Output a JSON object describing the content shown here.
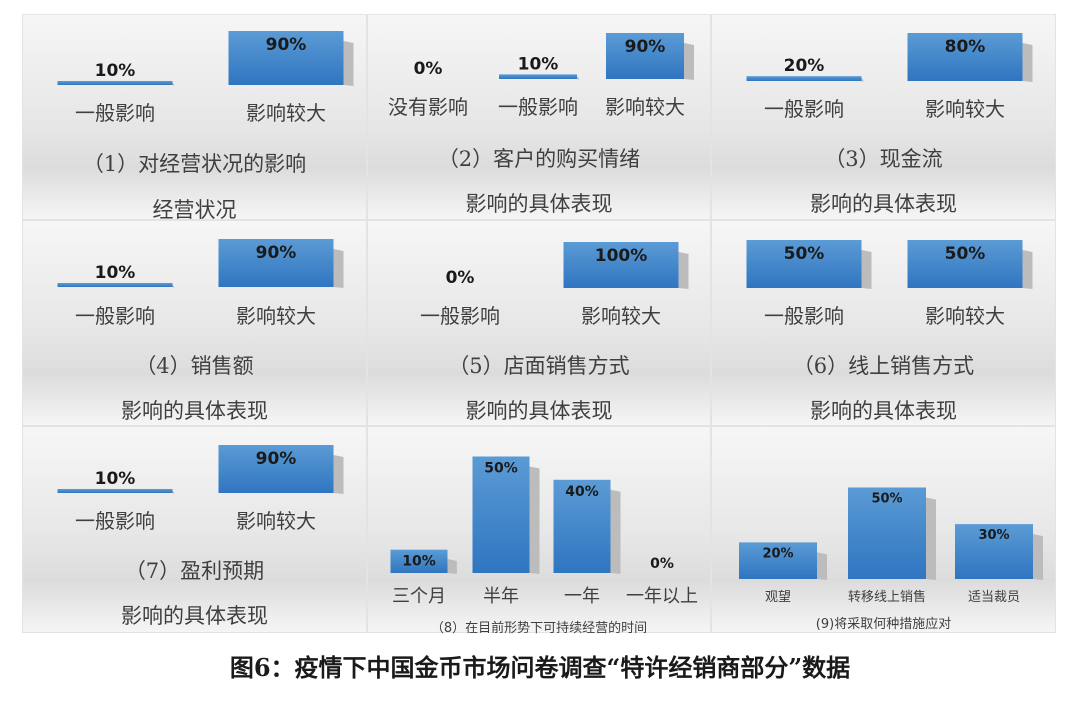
{
  "caption": "图6：疫情下中国金币市场问卷调查“特许经销商部分”数据",
  "colors": {
    "bar_top": "#5b9bd5",
    "bar_bottom": "#2f75c0",
    "label": "#1a1a1a"
  },
  "chart_data": [
    {
      "type": "bar",
      "title": "（1）对经营状况的影响",
      "subtitle": "经营状况",
      "categories": [
        "一般影响",
        "影响较大"
      ],
      "values": [
        10,
        90
      ],
      "value_labels": [
        "10%",
        "90%"
      ]
    },
    {
      "type": "bar",
      "title": "（2）客户的购买情绪",
      "subtitle": "影响的具体表现",
      "categories": [
        "没有影响",
        "一般影响",
        "影响较大"
      ],
      "values": [
        0,
        10,
        90
      ],
      "value_labels": [
        "0%",
        "10%",
        "90%"
      ]
    },
    {
      "type": "bar",
      "title": "（3）现金流",
      "subtitle": "影响的具体表现",
      "categories": [
        "一般影响",
        "影响较大"
      ],
      "values": [
        20,
        80
      ],
      "value_labels": [
        "20%",
        "80%"
      ]
    },
    {
      "type": "bar",
      "title": "（4）销售额",
      "subtitle": "影响的具体表现",
      "categories": [
        "一般影响",
        "影响较大"
      ],
      "values": [
        10,
        90
      ],
      "value_labels": [
        "10%",
        "90%"
      ]
    },
    {
      "type": "bar",
      "title": "（5）店面销售方式",
      "subtitle": "影响的具体表现",
      "categories": [
        "一般影响",
        "影响较大"
      ],
      "values": [
        0,
        100
      ],
      "value_labels": [
        "0%",
        "100%"
      ]
    },
    {
      "type": "bar",
      "title": "（6）线上销售方式",
      "subtitle": "影响的具体表现",
      "categories": [
        "一般影响",
        "影响较大"
      ],
      "values": [
        50,
        50
      ],
      "value_labels": [
        "50%",
        "50%"
      ]
    },
    {
      "type": "bar",
      "title": "（7）盈利预期",
      "subtitle": "影响的具体表现",
      "categories": [
        "一般影响",
        "影响较大"
      ],
      "values": [
        10,
        90
      ],
      "value_labels": [
        "10%",
        "90%"
      ]
    },
    {
      "type": "bar",
      "title": "（8）在目前形势下可持续经营的时间",
      "categories": [
        "三个月",
        "半年",
        "一年",
        "一年以上"
      ],
      "values": [
        10,
        50,
        40,
        0
      ],
      "value_labels": [
        "10%",
        "50%",
        "40%",
        "0%"
      ]
    },
    {
      "type": "bar",
      "title": "(9)将采取何种措施应对",
      "categories": [
        "观望",
        "转移线上销售",
        "适当裁员"
      ],
      "values": [
        20,
        50,
        30
      ],
      "value_labels": [
        "20%",
        "50%",
        "30%"
      ]
    }
  ]
}
